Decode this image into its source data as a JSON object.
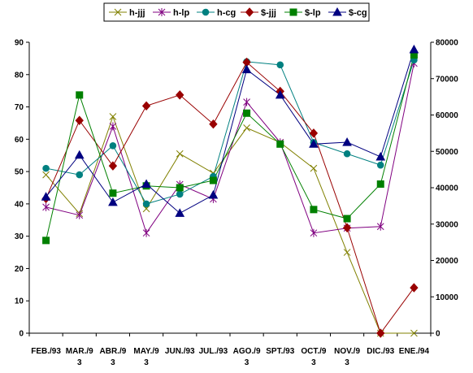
{
  "chart_data": {
    "type": "line",
    "categories": [
      [
        "FEB./93"
      ],
      [
        "MAR./9",
        "3"
      ],
      [
        "ABR./9",
        "3"
      ],
      [
        "MAY./9",
        "3"
      ],
      [
        "JUN./93"
      ],
      [
        "JUL./93"
      ],
      [
        "AGO./9",
        "3"
      ],
      [
        "SPT./93"
      ],
      [
        "OCT./9",
        "3"
      ],
      [
        "NOV./9",
        "3"
      ],
      [
        "DIC./93"
      ],
      [
        "ENE./94"
      ]
    ],
    "y_left": {
      "min": 0,
      "max": 90,
      "step": 10,
      "ticks": [
        "0",
        "10",
        "20",
        "30",
        "40",
        "50",
        "60",
        "70",
        "80",
        "90"
      ]
    },
    "y_right": {
      "min": 0,
      "max": 80000,
      "step": 10000,
      "ticks": [
        "0",
        "10000",
        "20000",
        "30000",
        "40000",
        "50000",
        "60000",
        "70000",
        "80000"
      ]
    },
    "grid": false,
    "legend_position": "top",
    "series": [
      {
        "name": "h-jjj",
        "axis": "left",
        "color": "#808000",
        "marker": "x",
        "values": [
          49,
          37,
          67,
          38.5,
          55.5,
          49.5,
          63.5,
          59,
          51,
          25,
          0,
          0
        ]
      },
      {
        "name": "h-lp",
        "axis": "left",
        "color": "#800080",
        "marker": "star",
        "values": [
          39,
          36.5,
          64,
          31,
          46,
          41.5,
          71.5,
          59,
          31,
          32.5,
          33,
          83.5
        ]
      },
      {
        "name": "h-cg",
        "axis": "left",
        "color": "#008080",
        "marker": "circle",
        "values": [
          51,
          49,
          58,
          40,
          43,
          48.5,
          84,
          83,
          59,
          55.5,
          52,
          84.5
        ]
      },
      {
        "name": "$-jjj",
        "axis": "right",
        "color": "#990000",
        "marker": "diamond",
        "values": [
          37000,
          58500,
          46000,
          62500,
          65500,
          57500,
          74500,
          66500,
          55000,
          29000,
          0,
          12500
        ]
      },
      {
        "name": "$-lp",
        "axis": "right",
        "color": "#008000",
        "marker": "square",
        "values": [
          25500,
          65500,
          38500,
          40500,
          40000,
          42000,
          60500,
          52000,
          34000,
          31500,
          41000,
          76500
        ]
      },
      {
        "name": "$-cg",
        "axis": "right",
        "color": "#000080",
        "marker": "triangle",
        "values": [
          37500,
          49000,
          36000,
          41000,
          33000,
          38000,
          72500,
          65500,
          52000,
          52500,
          48500,
          78000
        ]
      }
    ]
  }
}
